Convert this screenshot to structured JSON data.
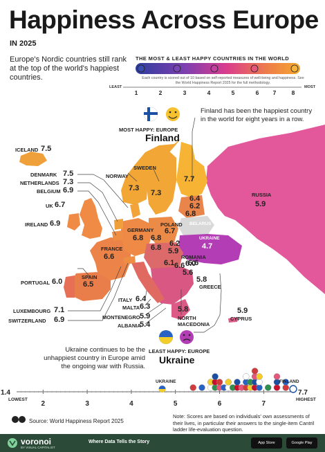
{
  "header": {
    "title": "Happiness Across Europe",
    "subtitle": "IN 2025",
    "intro": "Europe's Nordic countries still rank at the top of the world's happiest countries."
  },
  "legend": {
    "title": "THE MOST & LEAST HAPPY COUNTRIES IN THE WORLD",
    "note": "Each country is scored out of 10 based on self-reported measures of well-being and happiness. See the World Happiness Report 2025 for the full methodology.",
    "least_label": "LEAST",
    "most_label": "MOST",
    "scale": [
      "1",
      "2",
      "3",
      "4",
      "5",
      "6",
      "7",
      "8"
    ],
    "gradient": [
      "#2e3d9e",
      "#7d3fb0",
      "#d93c8d",
      "#ee7d4a",
      "#f4a72c"
    ]
  },
  "most_happy": {
    "label": "MOST HAPPY: EUROPE",
    "country": "Finland",
    "annotation": "Finland has been the happiest country in the world for eight years in a row."
  },
  "least_happy": {
    "label": "LEAST HAPPY: EUROPE",
    "country": "Ukraine",
    "annotation": "Ukraine continues to be the unhappiest country in Europe amid the ongoing war with Russia."
  },
  "countries": {
    "iceland": {
      "name": "ICELAND",
      "value": "7.5"
    },
    "denmark": {
      "name": "DENMARK",
      "value": "7.5"
    },
    "netherlands": {
      "name": "NETHERLANDS",
      "value": "7.3"
    },
    "belgium": {
      "name": "BELGIUM",
      "value": "6.9"
    },
    "uk": {
      "name": "UK",
      "value": "6.7"
    },
    "ireland": {
      "name": "IRELAND",
      "value": "6.9"
    },
    "france": {
      "name": "FRANCE",
      "value": "6.6"
    },
    "portugal": {
      "name": "PORTUGAL",
      "value": "6.0"
    },
    "spain": {
      "name": "SPAIN",
      "value": "6.5"
    },
    "luxembourg": {
      "name": "LUXEMBOURG",
      "value": "7.1"
    },
    "switzerland": {
      "name": "SWITZERLAND",
      "value": "6.9"
    },
    "sweden": {
      "name": "SWEDEN",
      "value": "7.3"
    },
    "norway": {
      "name": "NORWAY",
      "value": "7.3"
    },
    "finland": {
      "name": "FINLAND",
      "value": "7.7"
    },
    "russia": {
      "name": "RUSSIA",
      "value": "5.9"
    },
    "belarus": {
      "name": "BELARUS"
    },
    "ukraine": {
      "name": "UKRAINE",
      "value": "4.7"
    },
    "germany": {
      "name": "GERMANY",
      "value": "6.8"
    },
    "poland": {
      "name": "POLAND",
      "value": "6.7"
    },
    "romania": {
      "name": "ROMANIA",
      "value": "6.0"
    },
    "italy": {
      "name": "ITALY",
      "value": "6.4"
    },
    "malta": {
      "name": "MALTA",
      "value": "6.3"
    },
    "montenegro": {
      "name": "MONTENEGRO",
      "value": "5.9"
    },
    "albania": {
      "name": "ALBANIA",
      "value": "5.4"
    },
    "north_macedonia": {
      "name": "NORTH MACEDONIA",
      "value": "5.8"
    },
    "greece": {
      "name": "GREECE",
      "value": "5.8"
    },
    "cyprus": {
      "name": "CYPRUS",
      "value": "5.9"
    },
    "baltic_1": {
      "value": "6.4"
    },
    "baltic_2": {
      "value": "6.2"
    },
    "baltic_3": {
      "value": "6.8"
    },
    "central_1": {
      "value": "6.8"
    },
    "central_2": {
      "value": "6.8"
    },
    "central_3": {
      "value": "6.2"
    },
    "central_4": {
      "value": "5.9"
    },
    "balkan_1": {
      "value": "6.1"
    },
    "balkan_2": {
      "value": "6.6"
    },
    "balkan_3": {
      "value": "6.6"
    },
    "balkan_4": {
      "value": "5.6"
    }
  },
  "axis": {
    "low_value": "1.4",
    "low_label": "LOWEST",
    "high_value": "7.7",
    "high_label": "HIGHEST",
    "ticks": [
      "2",
      "3",
      "4",
      "5",
      "6",
      "7"
    ],
    "ukraine_label": "UKRAINE",
    "finland_label": "FINLAND",
    "ukraine_value": 4.7,
    "finland_value": 7.7,
    "cluster_values": [
      5.4,
      5.6,
      5.8,
      5.8,
      5.9,
      5.9,
      5.9,
      6.0,
      6.0,
      6.1,
      6.2,
      6.2,
      6.3,
      6.4,
      6.4,
      6.5,
      6.6,
      6.6,
      6.6,
      6.7,
      6.7,
      6.8,
      6.8,
      6.8,
      6.8,
      6.9,
      6.9,
      6.9,
      7.1,
      7.3,
      7.3,
      7.3,
      7.5,
      7.5
    ]
  },
  "source": "Source: World Happiness Report 2025",
  "note": "Note: Scores are based on individuals' own assessments of their lives, in particular their answers to the single-item Cantril ladder life-evaluation question.",
  "footer": {
    "brand": "voronoi",
    "brand_sub": "BY VISUAL CAPITALIST",
    "tagline": "Where Data Tells the Story",
    "app_store": "App Store",
    "google_play": "Google Play"
  }
}
